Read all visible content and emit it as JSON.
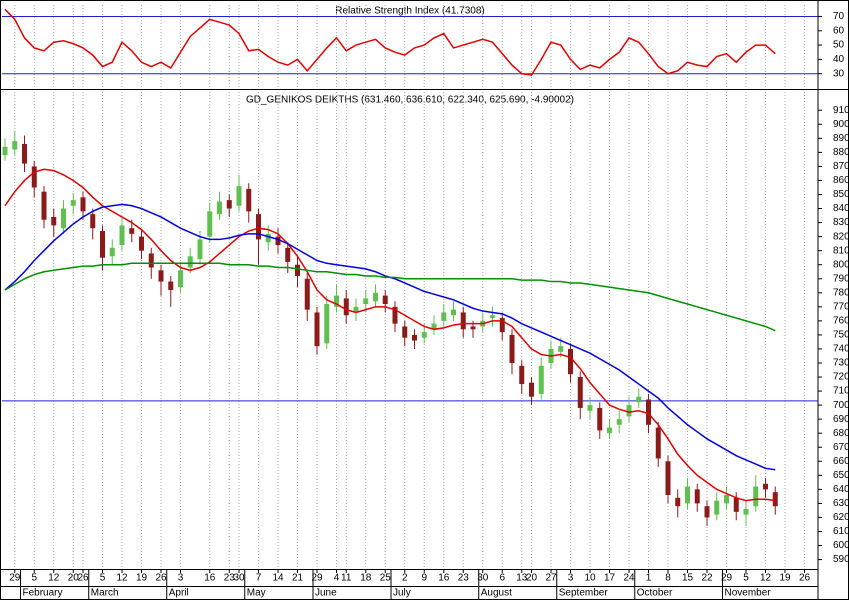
{
  "chart_data": [
    {
      "type": "line",
      "title": "Relative Strength Index (41.7308)",
      "color": "#e00000",
      "level_color": "#2020d0",
      "ylim": [
        20,
        78
      ],
      "yticks": [
        30,
        40,
        50,
        60,
        70
      ],
      "levels": [
        30,
        70
      ],
      "values": [
        75,
        68,
        55,
        48,
        46,
        52,
        53,
        51,
        48,
        43,
        35,
        38,
        52,
        46,
        38,
        35,
        38,
        34,
        45,
        56,
        62,
        68,
        66,
        64,
        58,
        46,
        47,
        42,
        38,
        36,
        40,
        32,
        40,
        48,
        55,
        46,
        50,
        52,
        54,
        48,
        45,
        43,
        48,
        50,
        55,
        58,
        48,
        50,
        52,
        54,
        52,
        44,
        36,
        30,
        29,
        40,
        52,
        50,
        40,
        33,
        36,
        34,
        40,
        45,
        55,
        52,
        44,
        35,
        30,
        32,
        38,
        36,
        35,
        42,
        44,
        38,
        45,
        50,
        50,
        44,
        null,
        null,
        null
      ]
    },
    {
      "type": "candlestick",
      "title": "GD_GENIKOS DEIKTHS (631.460, 636.610, 622.340, 625.690, -4.90002)",
      "ylim": [
        584,
        923
      ],
      "yticks": [
        590,
        600,
        610,
        620,
        630,
        640,
        650,
        660,
        670,
        680,
        690,
        700,
        710,
        720,
        730,
        740,
        750,
        760,
        770,
        780,
        790,
        800,
        810,
        820,
        830,
        840,
        850,
        860,
        870,
        880,
        890,
        900,
        910
      ],
      "hline": 703,
      "hline_color": "#2020d0",
      "up_color": "#5fbf4f",
      "down_color": "#8b1a1a",
      "grid": true,
      "categories": [
        null,
        "29",
        null,
        "5",
        null,
        "12",
        null,
        "20",
        "26",
        null,
        "5",
        null,
        "12",
        null,
        "19",
        null,
        "26",
        null,
        "3",
        null,
        null,
        "16",
        null,
        "23",
        "30",
        null,
        "7",
        null,
        "14",
        null,
        "21",
        null,
        "29",
        null,
        "4",
        "11",
        null,
        "18",
        null,
        "25",
        null,
        "2",
        null,
        "9",
        null,
        "16",
        null,
        "23",
        null,
        "30",
        null,
        "6",
        null,
        "13",
        "20",
        null,
        "27",
        null,
        "3",
        null,
        "10",
        null,
        "17",
        null,
        "24",
        null,
        "1",
        null,
        "8",
        null,
        "15",
        null,
        "22",
        null,
        "29",
        null,
        "5",
        null,
        "12",
        null,
        "19",
        null,
        "26"
      ],
      "months": [
        null,
        null,
        "February",
        null,
        null,
        null,
        null,
        null,
        null,
        "March",
        null,
        null,
        null,
        null,
        null,
        null,
        null,
        "April",
        null,
        null,
        null,
        null,
        null,
        null,
        null,
        "May",
        null,
        null,
        null,
        null,
        null,
        null,
        "June",
        null,
        null,
        null,
        null,
        null,
        null,
        null,
        "July",
        null,
        null,
        null,
        null,
        null,
        null,
        null,
        null,
        "August",
        null,
        null,
        null,
        null,
        null,
        null,
        null,
        "September",
        null,
        null,
        null,
        null,
        null,
        null,
        null,
        "October",
        null,
        null,
        null,
        null,
        null,
        null,
        null,
        null,
        "November",
        null,
        null,
        null,
        null,
        null,
        null,
        null,
        null
      ],
      "open": [
        878,
        882,
        886,
        870,
        852,
        834,
        826,
        842,
        848,
        836,
        824,
        806,
        814,
        826,
        820,
        808,
        796,
        788,
        784,
        798,
        804,
        820,
        836,
        846,
        842,
        854,
        836,
        816,
        820,
        812,
        800,
        790,
        766,
        744,
        770,
        776,
        766,
        772,
        774,
        778,
        770,
        756,
        750,
        748,
        754,
        760,
        764,
        766,
        756,
        756,
        762,
        762,
        750,
        728,
        716,
        708,
        730,
        738,
        740,
        720,
        696,
        698,
        680,
        686,
        692,
        702,
        704,
        684,
        660,
        634,
        630,
        640,
        628,
        622,
        630,
        634,
        622,
        628,
        644,
        638,
        null,
        null,
        null
      ],
      "high": [
        890,
        895,
        892,
        874,
        856,
        840,
        846,
        851,
        852,
        840,
        828,
        818,
        834,
        832,
        824,
        812,
        800,
        792,
        802,
        812,
        824,
        844,
        852,
        850,
        864,
        858,
        840,
        828,
        826,
        816,
        806,
        794,
        770,
        778,
        786,
        782,
        776,
        782,
        786,
        782,
        774,
        760,
        754,
        758,
        764,
        772,
        774,
        770,
        760,
        766,
        770,
        766,
        754,
        732,
        720,
        734,
        746,
        748,
        744,
        724,
        706,
        702,
        690,
        696,
        706,
        712,
        708,
        688,
        664,
        640,
        648,
        644,
        632,
        638,
        642,
        638,
        632,
        650,
        648,
        642,
        null,
        null,
        null
      ],
      "low": [
        874,
        878,
        866,
        848,
        826,
        820,
        822,
        836,
        832,
        818,
        796,
        800,
        810,
        816,
        804,
        790,
        778,
        770,
        780,
        794,
        800,
        816,
        832,
        834,
        838,
        830,
        800,
        810,
        808,
        794,
        784,
        760,
        736,
        740,
        766,
        758,
        760,
        766,
        770,
        766,
        752,
        742,
        740,
        744,
        750,
        756,
        760,
        748,
        748,
        752,
        756,
        746,
        722,
        708,
        700,
        704,
        726,
        734,
        716,
        690,
        690,
        676,
        676,
        680,
        688,
        698,
        680,
        656,
        630,
        620,
        626,
        624,
        614,
        618,
        626,
        618,
        614,
        624,
        634,
        622,
        null,
        null,
        null
      ],
      "close": [
        884,
        888,
        872,
        855,
        832,
        828,
        840,
        846,
        838,
        826,
        805,
        812,
        828,
        822,
        810,
        798,
        788,
        782,
        796,
        806,
        818,
        838,
        845,
        840,
        856,
        838,
        818,
        822,
        814,
        802,
        792,
        768,
        742,
        772,
        778,
        764,
        770,
        776,
        780,
        772,
        758,
        748,
        746,
        752,
        758,
        766,
        768,
        754,
        754,
        760,
        764,
        752,
        730,
        715,
        706,
        728,
        740,
        742,
        722,
        698,
        700,
        682,
        684,
        690,
        700,
        706,
        686,
        662,
        636,
        628,
        642,
        630,
        620,
        632,
        636,
        624,
        626,
        642,
        640,
        628,
        null,
        null,
        null
      ],
      "lines": [
        {
          "color": "#e00000",
          "values": [
            842,
            852,
            860,
            866,
            868,
            867,
            864,
            860,
            855,
            848,
            842,
            838,
            834,
            830,
            825,
            818,
            810,
            803,
            798,
            796,
            798,
            802,
            808,
            814,
            820,
            824,
            826,
            825,
            822,
            815,
            806,
            795,
            782,
            775,
            772,
            768,
            766,
            768,
            770,
            770,
            768,
            764,
            760,
            756,
            754,
            755,
            757,
            758,
            758,
            758,
            760,
            760,
            756,
            748,
            740,
            736,
            735,
            736,
            734,
            726,
            716,
            708,
            700,
            697,
            695,
            696,
            694,
            686,
            676,
            665,
            657,
            650,
            645,
            640,
            637,
            634,
            632,
            633,
            633,
            632,
            null,
            null,
            null
          ]
        },
        {
          "color": "#0000e0",
          "values": [
            782,
            788,
            795,
            803,
            810,
            817,
            823,
            829,
            834,
            838,
            841,
            842,
            843,
            842,
            840,
            837,
            834,
            830,
            826,
            823,
            820,
            818,
            818,
            819,
            821,
            822,
            822,
            820,
            818,
            815,
            811,
            807,
            803,
            801,
            800,
            799,
            798,
            797,
            795,
            792,
            790,
            787,
            784,
            781,
            779,
            777,
            775,
            772,
            769,
            767,
            766,
            765,
            762,
            758,
            755,
            752,
            749,
            746,
            743,
            740,
            737,
            733,
            729,
            725,
            720,
            715,
            710,
            705,
            698,
            692,
            686,
            681,
            676,
            672,
            668,
            664,
            661,
            658,
            655,
            654,
            null,
            null,
            null
          ]
        },
        {
          "color": "#009000",
          "values": [
            782,
            786,
            790,
            793,
            795,
            796,
            797,
            798,
            799,
            799,
            800,
            800,
            800,
            801,
            801,
            801,
            801,
            801,
            801,
            801,
            801,
            801,
            801,
            800,
            800,
            800,
            799,
            799,
            798,
            798,
            797,
            796,
            795,
            795,
            794,
            793,
            793,
            792,
            792,
            791,
            791,
            790,
            790,
            790,
            790,
            790,
            790,
            790,
            790,
            790,
            790,
            790,
            790,
            789,
            789,
            789,
            788,
            788,
            787,
            787,
            786,
            785,
            784,
            783,
            782,
            781,
            780,
            778,
            776,
            774,
            772,
            770,
            768,
            766,
            764,
            762,
            760,
            758,
            756,
            753,
            null,
            null,
            null
          ]
        }
      ]
    }
  ]
}
